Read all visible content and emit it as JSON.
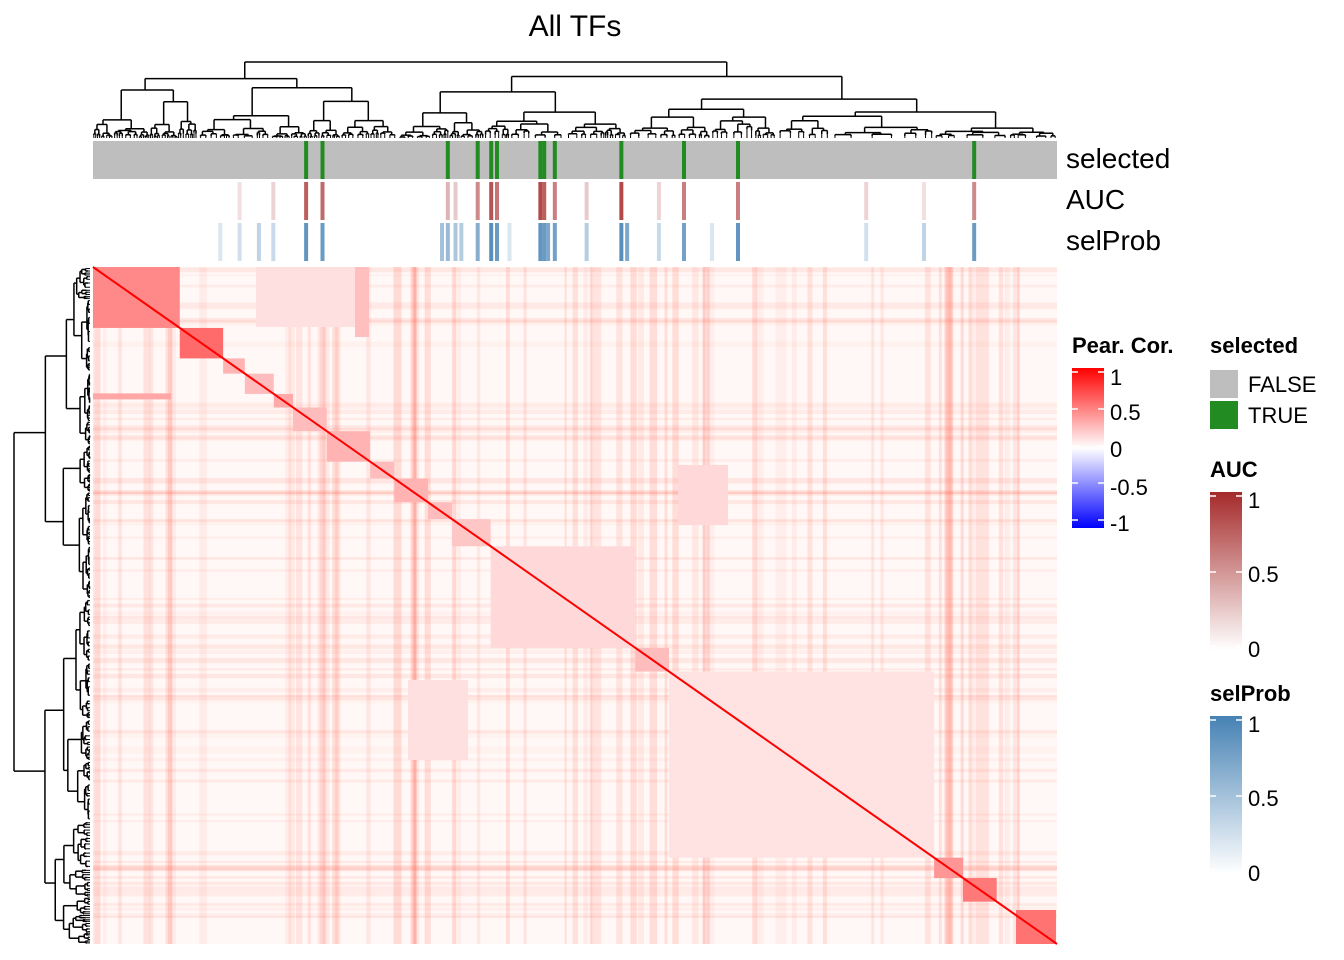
{
  "chart_data": {
    "type": "heatmap",
    "title": "All TFs",
    "matrix_kind": "correlation",
    "n_features": 400,
    "clusters": [
      {
        "size": 36,
        "within_cor": 0.62
      },
      {
        "size": 18,
        "within_cor": 0.78
      },
      {
        "size": 9,
        "within_cor": 0.4
      },
      {
        "size": 12,
        "within_cor": 0.35
      },
      {
        "size": 8,
        "within_cor": 0.45
      },
      {
        "size": 14,
        "within_cor": 0.35
      },
      {
        "size": 18,
        "within_cor": 0.4
      },
      {
        "size": 10,
        "within_cor": 0.35
      },
      {
        "size": 14,
        "within_cor": 0.4
      },
      {
        "size": 10,
        "within_cor": 0.35
      },
      {
        "size": 16,
        "within_cor": 0.3
      },
      {
        "size": 60,
        "within_cor": 0.2
      },
      {
        "size": 14,
        "within_cor": 0.35
      },
      {
        "size": 110,
        "within_cor": 0.15
      },
      {
        "size": 12,
        "within_cor": 0.55
      },
      {
        "size": 14,
        "within_cor": 0.7
      }
    ],
    "off_diagonal_cor_range": [
      0,
      0.3
    ],
    "diagonal_value": 1,
    "top_annotations": [
      {
        "name": "selected",
        "type": "categorical",
        "levels": [
          "FALSE",
          "TRUE"
        ],
        "colors": {
          "FALSE": "#bebebe",
          "TRUE": "#228b22"
        },
        "true_positions": [
          0.219,
          0.236,
          0.366,
          0.397,
          0.411,
          0.417,
          0.462,
          0.466,
          0.477,
          0.546,
          0.611,
          0.667,
          0.912
        ]
      },
      {
        "name": "AUC",
        "type": "continuous",
        "range": [
          0,
          1
        ],
        "colors": [
          "#ffffff",
          "#a52a2a"
        ],
        "marks": [
          {
            "pos": 0.219,
            "v": 0.75
          },
          {
            "pos": 0.236,
            "v": 0.7
          },
          {
            "pos": 0.366,
            "v": 0.35
          },
          {
            "pos": 0.374,
            "v": 0.25
          },
          {
            "pos": 0.397,
            "v": 0.55
          },
          {
            "pos": 0.411,
            "v": 0.8
          },
          {
            "pos": 0.417,
            "v": 0.65
          },
          {
            "pos": 0.462,
            "v": 0.85
          },
          {
            "pos": 0.466,
            "v": 0.75
          },
          {
            "pos": 0.477,
            "v": 0.6
          },
          {
            "pos": 0.51,
            "v": 0.25
          },
          {
            "pos": 0.546,
            "v": 0.85
          },
          {
            "pos": 0.611,
            "v": 0.6
          },
          {
            "pos": 0.667,
            "v": 0.6
          },
          {
            "pos": 0.912,
            "v": 0.55
          },
          {
            "pos": 0.185,
            "v": 0.2
          },
          {
            "pos": 0.15,
            "v": 0.15
          },
          {
            "pos": 0.585,
            "v": 0.2
          },
          {
            "pos": 0.8,
            "v": 0.2
          },
          {
            "pos": 0.86,
            "v": 0.15
          }
        ]
      },
      {
        "name": "selProb",
        "type": "continuous",
        "range": [
          0,
          1
        ],
        "colors": [
          "#ffffff",
          "#4682b4"
        ],
        "marks": [
          {
            "pos": 0.219,
            "v": 0.85
          },
          {
            "pos": 0.236,
            "v": 0.8
          },
          {
            "pos": 0.13,
            "v": 0.2
          },
          {
            "pos": 0.15,
            "v": 0.25
          },
          {
            "pos": 0.17,
            "v": 0.35
          },
          {
            "pos": 0.185,
            "v": 0.3
          },
          {
            "pos": 0.36,
            "v": 0.5
          },
          {
            "pos": 0.366,
            "v": 0.55
          },
          {
            "pos": 0.374,
            "v": 0.45
          },
          {
            "pos": 0.38,
            "v": 0.4
          },
          {
            "pos": 0.397,
            "v": 0.65
          },
          {
            "pos": 0.411,
            "v": 0.9
          },
          {
            "pos": 0.417,
            "v": 0.8
          },
          {
            "pos": 0.43,
            "v": 0.2
          },
          {
            "pos": 0.462,
            "v": 0.85
          },
          {
            "pos": 0.466,
            "v": 0.8
          },
          {
            "pos": 0.47,
            "v": 0.7
          },
          {
            "pos": 0.477,
            "v": 0.75
          },
          {
            "pos": 0.51,
            "v": 0.4
          },
          {
            "pos": 0.546,
            "v": 0.9
          },
          {
            "pos": 0.552,
            "v": 0.7
          },
          {
            "pos": 0.585,
            "v": 0.3
          },
          {
            "pos": 0.611,
            "v": 0.75
          },
          {
            "pos": 0.64,
            "v": 0.2
          },
          {
            "pos": 0.667,
            "v": 0.85
          },
          {
            "pos": 0.8,
            "v": 0.25
          },
          {
            "pos": 0.86,
            "v": 0.35
          },
          {
            "pos": 0.912,
            "v": 0.8
          }
        ]
      }
    ],
    "legends": [
      {
        "title": "Pear. Cor.",
        "ticks": [
          "1",
          "0.5",
          "0",
          "-0.5",
          "-1"
        ],
        "range": [
          -1,
          1
        ],
        "colors": [
          "#0000ff",
          "#ffffff",
          "#ff0000"
        ]
      },
      {
        "title": "selected",
        "items": [
          "FALSE",
          "TRUE"
        ]
      },
      {
        "title": "AUC",
        "ticks": [
          "1",
          "0.5",
          "0"
        ]
      },
      {
        "title": "selProb",
        "ticks": [
          "1",
          "0.5",
          "0"
        ]
      }
    ],
    "dendrograms": [
      "top",
      "left"
    ]
  }
}
